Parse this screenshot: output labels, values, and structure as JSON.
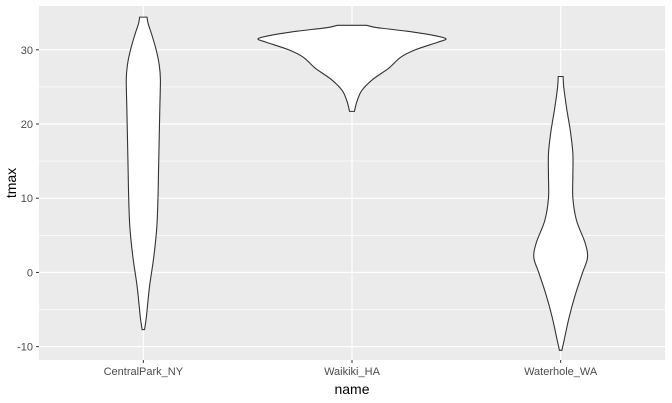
{
  "chart_data": {
    "type": "violin",
    "xlabel": "name",
    "ylabel": "tmax",
    "ylim": [
      -11.8,
      35.9
    ],
    "categories": [
      "CentralPark_NY",
      "Waikiki_HA",
      "Waterhole_WA"
    ],
    "y_ticks": [
      -10,
      0,
      10,
      20,
      30
    ],
    "y_tick_labels": [
      "-10",
      "0",
      "10",
      "20",
      "30"
    ],
    "grid": true,
    "panel_color": "#ebebeb",
    "grid_color": "#ffffff",
    "violin_fill": "#ffffff",
    "violin_stroke": "#333333",
    "violins": [
      {
        "category": "CentralPark_NY",
        "profile": [
          {
            "y": -7.7,
            "d": 0.01
          },
          {
            "y": -6,
            "d": 0.025
          },
          {
            "y": -2,
            "d": 0.05
          },
          {
            "y": 2,
            "d": 0.085
          },
          {
            "y": 6,
            "d": 0.11
          },
          {
            "y": 10,
            "d": 0.12
          },
          {
            "y": 14,
            "d": 0.125
          },
          {
            "y": 18,
            "d": 0.13
          },
          {
            "y": 22,
            "d": 0.135
          },
          {
            "y": 26,
            "d": 0.14
          },
          {
            "y": 28,
            "d": 0.13
          },
          {
            "y": 30,
            "d": 0.105
          },
          {
            "y": 32,
            "d": 0.07
          },
          {
            "y": 33.5,
            "d": 0.04
          },
          {
            "y": 34.4,
            "d": 0.03
          }
        ]
      },
      {
        "category": "Waikiki_HA",
        "profile": [
          {
            "y": 21.7,
            "d": 0.02
          },
          {
            "y": 23,
            "d": 0.04
          },
          {
            "y": 24.5,
            "d": 0.08
          },
          {
            "y": 26,
            "d": 0.17
          },
          {
            "y": 27.5,
            "d": 0.3
          },
          {
            "y": 29,
            "d": 0.4
          },
          {
            "y": 30,
            "d": 0.52
          },
          {
            "y": 31,
            "d": 0.7
          },
          {
            "y": 31.5,
            "d": 0.77
          },
          {
            "y": 32,
            "d": 0.65
          },
          {
            "y": 32.5,
            "d": 0.45
          },
          {
            "y": 33,
            "d": 0.2
          },
          {
            "y": 33.3,
            "d": 0.12
          }
        ]
      },
      {
        "category": "Waterhole_WA",
        "profile": [
          {
            "y": -10.5,
            "d": 0.01
          },
          {
            "y": -9,
            "d": 0.03
          },
          {
            "y": -6,
            "d": 0.07
          },
          {
            "y": -3,
            "d": 0.12
          },
          {
            "y": 0,
            "d": 0.18
          },
          {
            "y": 2,
            "d": 0.22
          },
          {
            "y": 4,
            "d": 0.2
          },
          {
            "y": 7,
            "d": 0.13
          },
          {
            "y": 10,
            "d": 0.1
          },
          {
            "y": 13,
            "d": 0.1
          },
          {
            "y": 16,
            "d": 0.1
          },
          {
            "y": 19,
            "d": 0.08
          },
          {
            "y": 22,
            "d": 0.05
          },
          {
            "y": 25,
            "d": 0.025
          },
          {
            "y": 26.4,
            "d": 0.02
          }
        ]
      }
    ]
  }
}
